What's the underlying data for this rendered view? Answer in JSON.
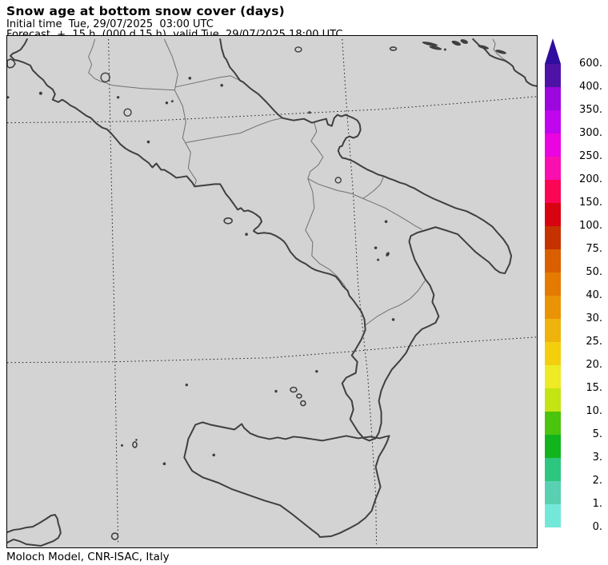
{
  "header": {
    "title": "Snow age at bottom snow cover (days)",
    "line2": "Initial time  Tue, 29/07/2025  03:00 UTC",
    "line3": "Forecast  +  15 h  (000 d 15 h)  valid Tue, 29/07/2025 18:00 UTC"
  },
  "footer": {
    "credit": "Moloch Model, CNR-ISAC, Italy"
  },
  "colorbar": {
    "arrow_color": "#2f0d9e",
    "tick_labels_top_to_bottom": [
      "600.",
      "400.",
      "350.",
      "300.",
      "250.",
      "200.",
      "150.",
      "100.",
      "75.",
      "50.",
      "40.",
      "30.",
      "25.",
      "20.",
      "15.",
      "10.",
      "5.",
      "3.",
      "2.",
      "1.",
      "0."
    ],
    "segment_colors_top_to_bottom": [
      "#4f12a6",
      "#9b07dc",
      "#bf06ee",
      "#ea04e0",
      "#f90fb0",
      "#fb0655",
      "#d70310",
      "#c63100",
      "#d95f00",
      "#e47b00",
      "#ea9305",
      "#eeb40c",
      "#f3cf0e",
      "#eeea25",
      "#c4e414",
      "#4bc40e",
      "#12b41e",
      "#2dc67e",
      "#5ad0b2",
      "#74e8d8"
    ]
  },
  "map": {
    "background_color": "#d3d3d3",
    "coastline_color": "#3f3f3f",
    "region_border_color": "#707070",
    "gridline_color": "#1b1b1b",
    "frame_color": "#000000"
  }
}
